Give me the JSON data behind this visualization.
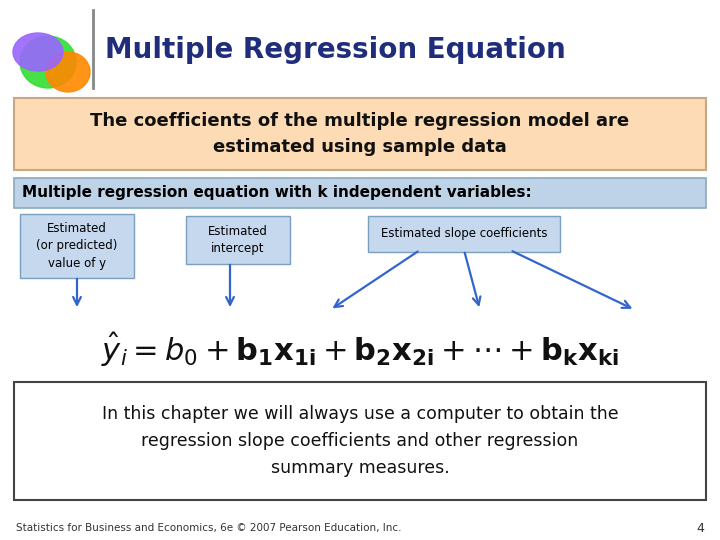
{
  "title": "Multiple Regression Equation",
  "title_color": "#1F2D7B",
  "bg_color": "#FFFFFF",
  "box1_text": "The coefficients of the multiple regression model are\nestimated using sample data",
  "box1_bg": "#FDDCB5",
  "box1_border": "#C8A882",
  "box2_text": "Multiple regression equation with k independent variables:",
  "box2_bg": "#BED3E8",
  "box2_border": "#8AAABF",
  "label1": "Estimated\n(or predicted)\nvalue of y",
  "label2": "Estimated\nintercept",
  "label3": "Estimated slope coefficients",
  "label_bg": "#C5D8EE",
  "label_border": "#7A9FBF",
  "bottom_text1": "In this chapter we will always use a computer to obtain the\nregression slope coefficients and other regression\nsummary measures.",
  "bottom_text2": "Statistics for Business and Economics, 6e © 2007 Pearson Education, Inc.",
  "bottom_page": "4",
  "arrow_color": "#3366CC",
  "eq_color": "#111111"
}
